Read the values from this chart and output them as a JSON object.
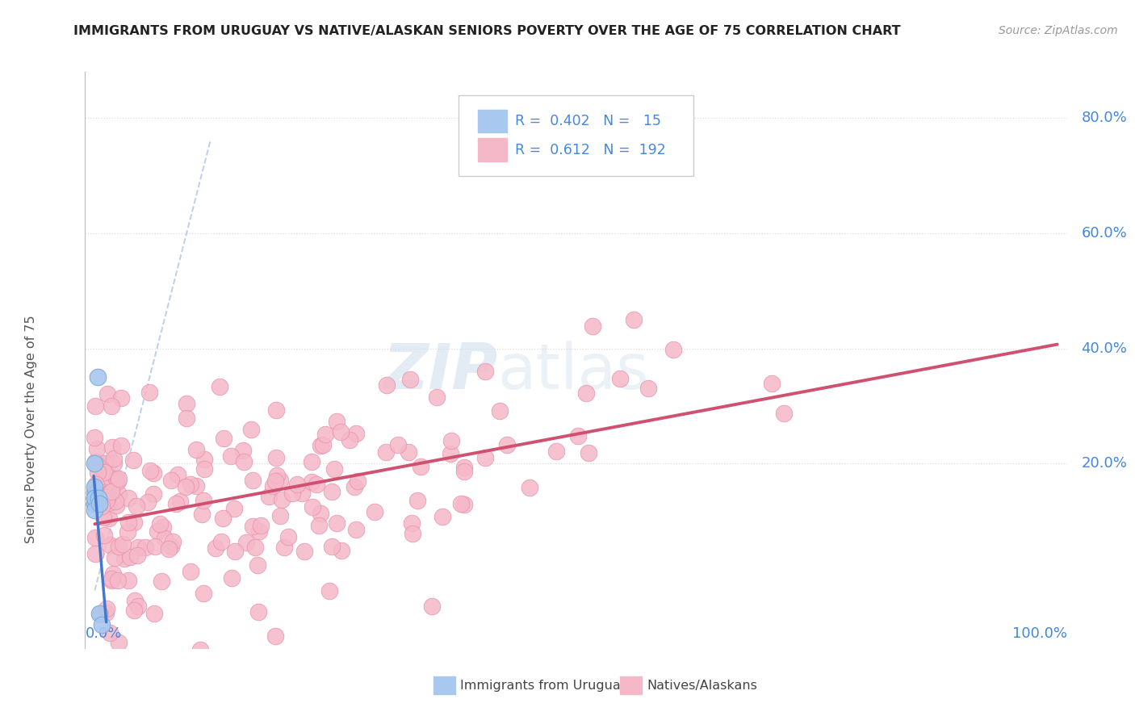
{
  "title": "IMMIGRANTS FROM URUGUAY VS NATIVE/ALASKAN SENIORS POVERTY OVER THE AGE OF 75 CORRELATION CHART",
  "source": "Source: ZipAtlas.com",
  "ylabel": "Seniors Poverty Over the Age of 75",
  "watermark_zip": "ZIP",
  "watermark_atlas": "atlas",
  "uruguay_color": "#a8c8f0",
  "uruguay_edge": "#7aaad8",
  "native_color": "#f5b8c8",
  "native_edge": "#e890aa",
  "uruguay_line_color": "#4477cc",
  "native_line_color": "#d05070",
  "diag_line_color": "#b0c8e8",
  "grid_color": "#dddddd",
  "background_color": "#ffffff",
  "title_color": "#222222",
  "source_color": "#999999",
  "axis_label_color": "#4488dd",
  "ylabel_color": "#555555",
  "watermark_color_zip": "#c8daf0",
  "watermark_color_atlas": "#c8daf0",
  "legend_r1": "R =  0.402",
  "legend_n1": "N =   15",
  "legend_r2": "R =  0.612",
  "legend_n2": "N =  192",
  "xlim": [
    0.0,
    1.0
  ],
  "ylim": [
    -0.1,
    0.82
  ],
  "ytick_vals": [
    0.2,
    0.4,
    0.6,
    0.8
  ],
  "ytick_labels": [
    "20.0%",
    "40.0%",
    "60.0%",
    "80.0%"
  ]
}
